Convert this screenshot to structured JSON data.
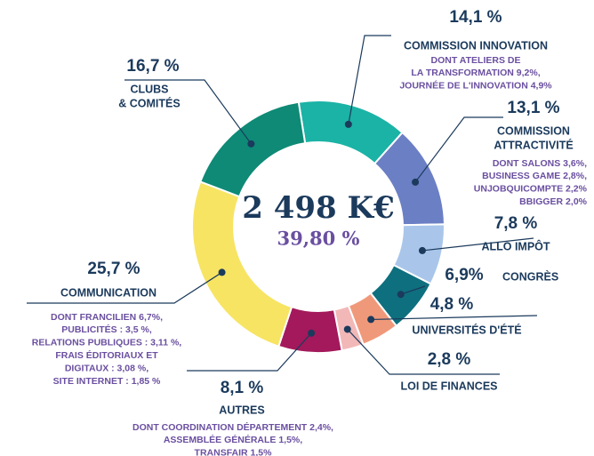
{
  "chart_data": {
    "type": "donut",
    "total_label": "2 498 K€",
    "share_label": "39,80 %",
    "segments": [
      {
        "name_lines": [
          "COMMISSION INNOVATION"
        ],
        "value": 14.1,
        "value_label": "14,1 %",
        "color": "#1ab3a6",
        "details": [
          "DONT ATELIERS DE",
          "LA TRANSFORMATION 9,2%,",
          "JOURNÉE DE L'INNOVATION 4,9%"
        ]
      },
      {
        "name_lines": [
          "COMMISSION",
          "ATTRACTIVITÉ"
        ],
        "value": 13.1,
        "value_label": "13,1 %",
        "color": "#6b7fc4",
        "details": [
          "DONT SALONS  3,6%,",
          "BUSINESS GAME 2,8%,",
          "UNJOBQUICOMPTE 2,2%",
          "BBIGGER 2,0%"
        ]
      },
      {
        "name_lines": [
          "ALLO IMPÔT"
        ],
        "value": 7.8,
        "value_label": "7,8 %",
        "color": "#a9c6ea",
        "details": []
      },
      {
        "name_lines": [
          "CONGRÈS"
        ],
        "value": 6.9,
        "value_label": "6,9%",
        "color": "#0e6f7e",
        "details": []
      },
      {
        "name_lines": [
          "UNIVERSITÉS D'ÉTÉ"
        ],
        "value": 4.8,
        "value_label": "4,8 %",
        "color": "#f0997a",
        "details": []
      },
      {
        "name_lines": [
          "LOI DE FINANCES"
        ],
        "value": 2.8,
        "value_label": "2,8 %",
        "color": "#f2b8b8",
        "details": []
      },
      {
        "name_lines": [
          "AUTRES"
        ],
        "value": 8.1,
        "value_label": "8,1 %",
        "color": "#a3195b",
        "details": [
          "DONT COORDINATION DÉPARTEMENT 2,4%,",
          "ASSEMBLÉE GÉNÉRALE 1,5%,",
          "TRANSFAIR 1,5%"
        ]
      },
      {
        "name_lines": [
          "COMMUNICATION"
        ],
        "value": 25.7,
        "value_label": "25,7 %",
        "color": "#f7e463",
        "details": [
          "DONT FRANCILIEN 6,7%,",
          "PUBLICITÉS : 3,5 %,",
          "RELATIONS PUBLIQUES :  3,11 %,",
          "FRAIS ÉDITORIAUX ET",
          "DIGITAUX : 3,08 %,",
          "SITE INTERNET : 1,85 %"
        ]
      },
      {
        "name_lines": [
          "CLUBS",
          "& COMITÉS"
        ],
        "value": 16.7,
        "value_label": "16,7 %",
        "color": "#0e8a76",
        "details": []
      }
    ]
  }
}
